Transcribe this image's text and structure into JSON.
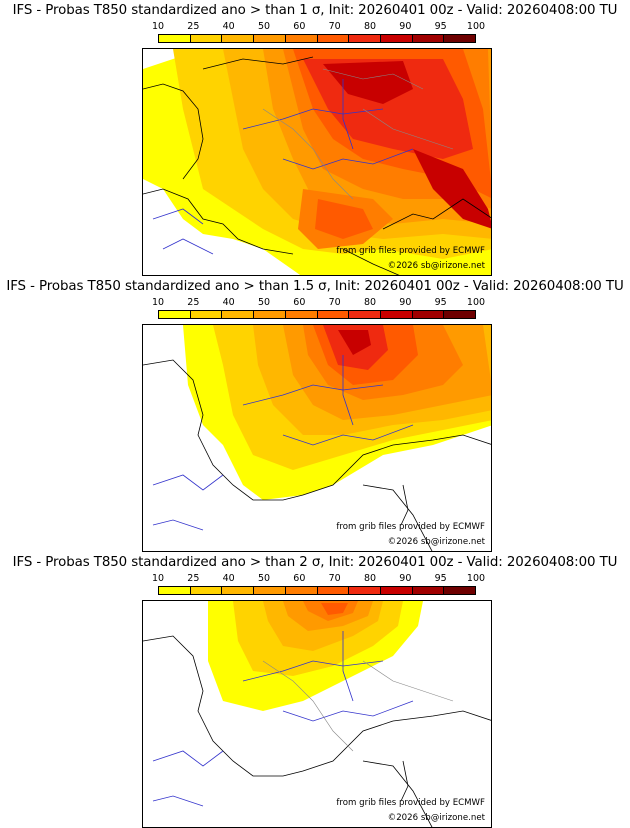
{
  "scale": {
    "ticks": [
      "10",
      "25",
      "40",
      "50",
      "60",
      "70",
      "80",
      "90",
      "95",
      "100"
    ],
    "colors": [
      "#ffff00",
      "#ffd300",
      "#ffb700",
      "#ff9a00",
      "#ff7d00",
      "#ff5a00",
      "#ef2a10",
      "#c80000",
      "#a00000",
      "#6e0000"
    ]
  },
  "panels": [
    {
      "title": "IFS - Probas T850  standardized ano > than 1 σ, Init: 20260401 00z - Valid: 20260408:00 TU",
      "source_credit": "from grib files provided by ECMWF",
      "copyright": "©2026 sb@irizone.net"
    },
    {
      "title": "IFS - Probas T850  standardized ano > than 1.5 σ, Init: 20260401 00z - Valid: 20260408:00 TU",
      "source_credit": "from grib files provided by ECMWF",
      "copyright": "©2026 sb@irizone.net"
    },
    {
      "title": "IFS - Probas T850  standardized ano > than 2 σ, Init: 20260401 00z - Valid: 20260408:00 TU",
      "source_credit": "from grib files provided by ECMWF",
      "copyright": "©2026 sb@irizone.net"
    }
  ]
}
